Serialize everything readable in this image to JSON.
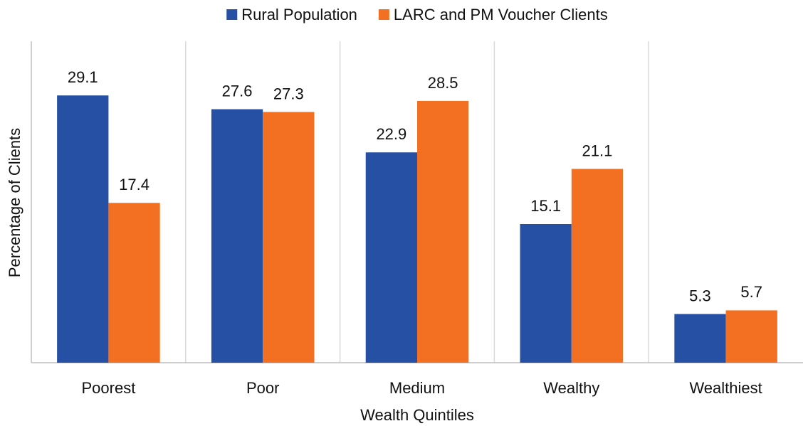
{
  "chart_data": {
    "type": "bar",
    "categories": [
      "Poorest",
      "Poor",
      "Medium",
      "Wealthy",
      "Wealthiest"
    ],
    "series": [
      {
        "name": "Rural Population",
        "color": "#2550a3",
        "values": [
          29.1,
          27.6,
          22.9,
          15.1,
          5.3
        ]
      },
      {
        "name": "LARC and PM Voucher Clients",
        "color": "#f36f21",
        "values": [
          17.4,
          27.3,
          28.5,
          21.1,
          5.7
        ]
      }
    ],
    "xlabel": "Wealth Quintiles",
    "ylabel": "Percentage of Clients",
    "ylim": [
      0,
      35
    ],
    "legend": "top"
  }
}
